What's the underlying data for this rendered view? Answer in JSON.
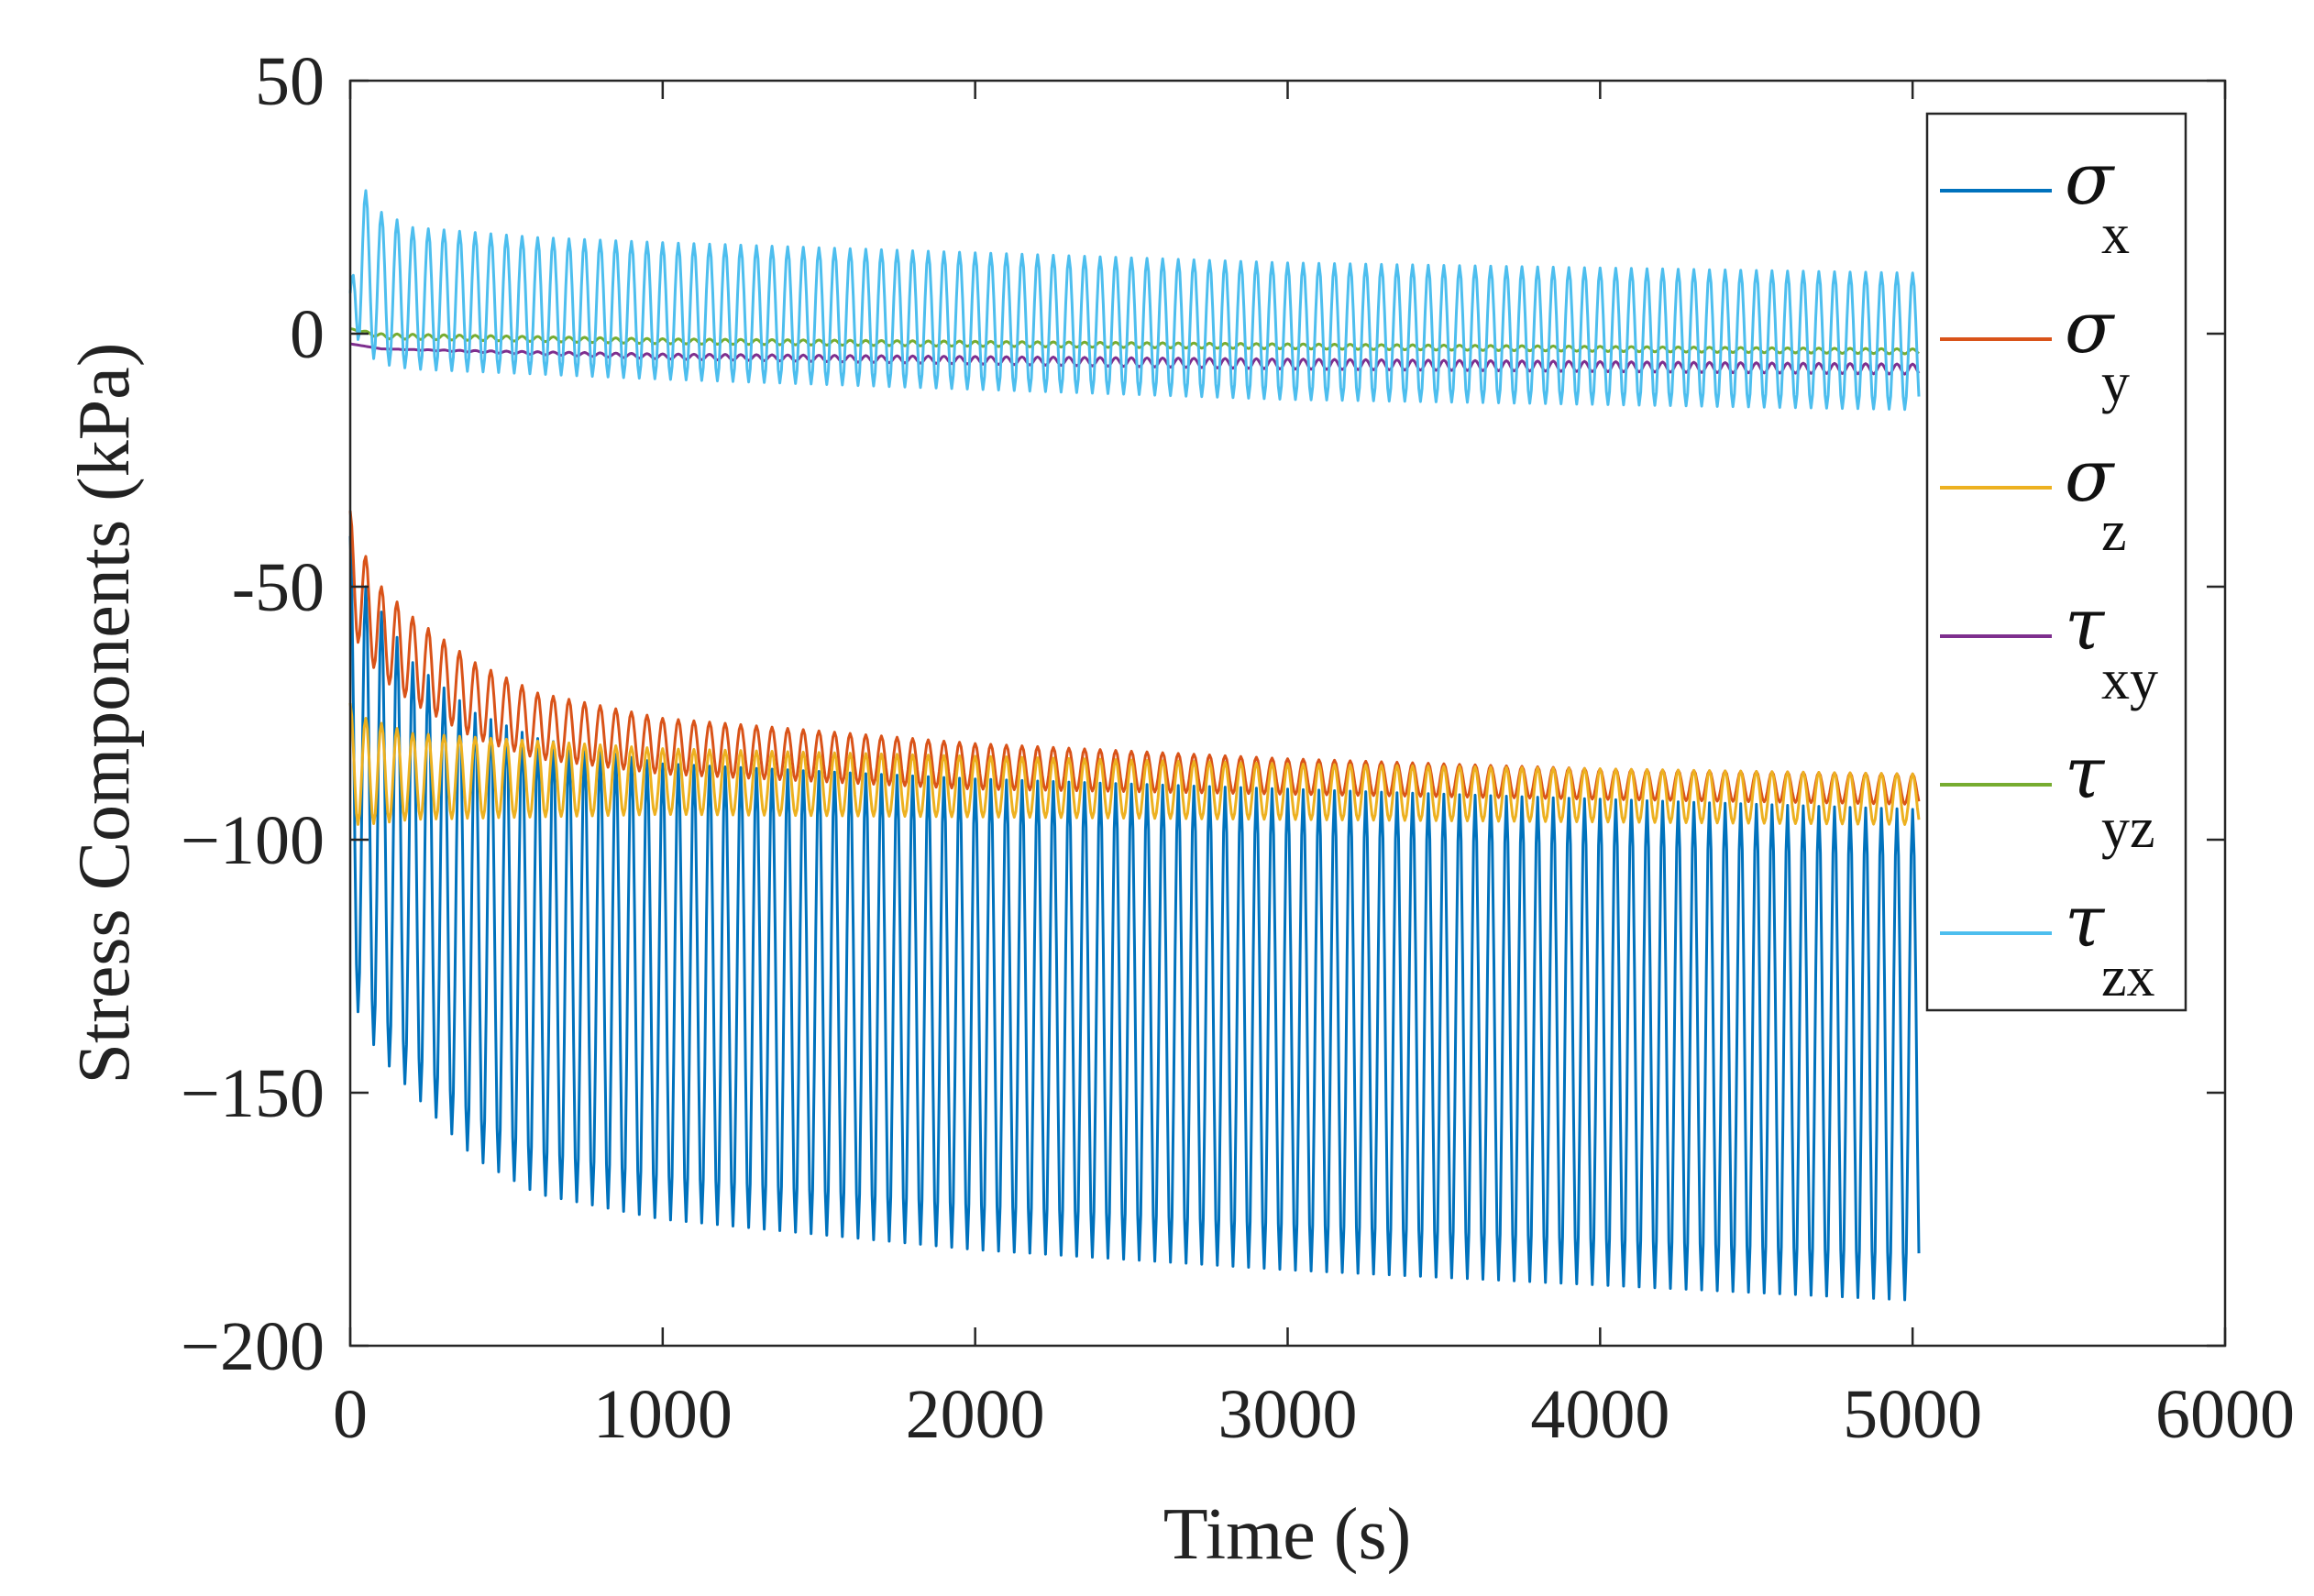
{
  "chart_data": {
    "type": "line",
    "title": "",
    "xlabel": "Time (s)",
    "ylabel": "Stress Components (kPa)",
    "xlim": [
      0,
      6000
    ],
    "ylim": [
      -200,
      50
    ],
    "xticks": [
      0,
      1000,
      2000,
      3000,
      4000,
      5000,
      6000
    ],
    "xtick_labels": [
      "0",
      "1000",
      "2000",
      "3000",
      "4000",
      "5000",
      "6000"
    ],
    "yticks": [
      50,
      0,
      -50,
      -100,
      -150,
      -200
    ],
    "ytick_labels": [
      "50",
      "0",
      "-50",
      "−100",
      "−150",
      "−200"
    ],
    "grid": false,
    "legend_position": "top-right",
    "oscillation_period_s": 50,
    "series": [
      {
        "name": "σx",
        "symbol": "σ",
        "subscript": "x",
        "color": "#0072BD",
        "t": [
          0,
          50,
          100,
          200,
          400,
          600,
          1000,
          2000,
          3000,
          4000,
          5000
        ],
        "upper": [
          -40,
          -50,
          -55,
          -65,
          -75,
          -80,
          -85,
          -88,
          -90,
          -92,
          -94
        ],
        "lower": [
          -130,
          -138,
          -143,
          -150,
          -163,
          -170,
          -175,
          -181,
          -185,
          -188,
          -191
        ]
      },
      {
        "name": "σy",
        "symbol": "σ",
        "subscript": "y",
        "color": "#D95319",
        "t": [
          0,
          50,
          100,
          200,
          400,
          600,
          1000,
          2000,
          3000,
          4000,
          5000
        ],
        "upper": [
          -35,
          -44,
          -50,
          -56,
          -65,
          -71,
          -76,
          -81,
          -84,
          -86,
          -87
        ],
        "lower": [
          -58,
          -64,
          -68,
          -73,
          -80,
          -84,
          -87,
          -90,
          -91,
          -92,
          -93
        ]
      },
      {
        "name": "σz",
        "symbol": "σ",
        "subscript": "z",
        "color": "#EDB120",
        "t": [
          0,
          50,
          200,
          1000,
          3000,
          5000
        ],
        "upper": [
          -73,
          -76,
          -79,
          -82,
          -85,
          -87
        ],
        "lower": [
          -97,
          -97,
          -96,
          -95,
          -96,
          -97
        ]
      },
      {
        "name": "τxy",
        "symbol": "τ",
        "subscript": "xy",
        "color": "#7E2F8E",
        "t": [
          0,
          100,
          1000,
          3000,
          5000
        ],
        "upper": [
          -2,
          -3,
          -4,
          -5,
          -6
        ],
        "lower": [
          -2,
          -3,
          -5,
          -7,
          -8
        ]
      },
      {
        "name": "τyz",
        "symbol": "τ",
        "subscript": "yz",
        "color": "#77AC30",
        "t": [
          0,
          100,
          1000,
          3000,
          5000
        ],
        "upper": [
          1,
          0,
          -1,
          -2,
          -3
        ],
        "lower": [
          1,
          -1,
          -2,
          -3,
          -4
        ]
      },
      {
        "name": "τzx",
        "symbol": "τ",
        "subscript": "zx",
        "color": "#4DBEEE",
        "t": [
          0,
          30,
          100,
          200,
          600,
          1000,
          2000,
          3000,
          4000,
          5000
        ],
        "upper": [
          8,
          30,
          24,
          21,
          19,
          18,
          16,
          14,
          13,
          12
        ],
        "lower": [
          8,
          -3,
          -6,
          -7,
          -8,
          -9,
          -11,
          -13,
          -14,
          -15
        ]
      }
    ]
  }
}
